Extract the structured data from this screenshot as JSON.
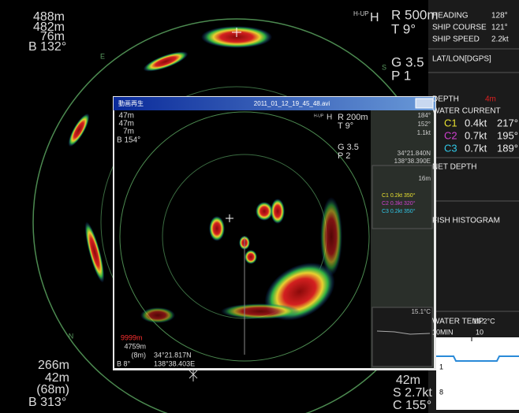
{
  "scope": {
    "top_left": [
      "488m",
      "482m",
      "76m",
      "B 132°"
    ],
    "mode": "H-UP",
    "heading_mark": "H",
    "range": "R 500m",
    "tilt": "T 9°",
    "gain": "G 3.5",
    "preset": "P 1",
    "bearings": [
      "E",
      "S",
      "N"
    ],
    "bottom_left": [
      "266m",
      "42m",
      "(68m)",
      "B 313°"
    ],
    "bottom_right": [
      "42m",
      "S 2.7kt",
      "C 155°"
    ]
  },
  "side_panel": {
    "heading": {
      "label": "HEADING",
      "value": "128°"
    },
    "ship_course": {
      "label": "SHIP COURSE",
      "value": "121°"
    },
    "ship_speed": {
      "label": "SHIP SPEED",
      "value": "2.2kt"
    },
    "position": "LAT/LON[DGPS]",
    "depth": {
      "label": "DEPTH",
      "value": "4m"
    },
    "water_current": {
      "label": "WATER CURRENT",
      "layers": [
        {
          "name": "C1",
          "speed": "0.4kt",
          "direction": "217°"
        },
        {
          "name": "C2",
          "speed": "0.7kt",
          "direction": "195°"
        },
        {
          "name": "C3",
          "speed": "0.7kt",
          "direction": "189°"
        }
      ]
    },
    "net_depth": "NET DEPTH",
    "fish_histogram": "FISH HISTOGRAM",
    "water_temp": {
      "label": "WATER TEMP",
      "value": "16.2°C",
      "span": "10MIN",
      "span_tick": "10",
      "axis": [
        "1",
        "8"
      ]
    }
  },
  "playback_window": {
    "title": "動画再生",
    "file": "2011_01_12_19_45_48.avi",
    "top_left": [
      "47m",
      "47m",
      "7m",
      "B 154°"
    ],
    "mode": "H-UP",
    "heading_mark": "H",
    "range": "R 200m",
    "tilt": "T 9°",
    "gain": "G 3.5",
    "preset": "P 2",
    "info": [
      "184°",
      "152°",
      "1.1kt",
      "34°21.840N",
      "138°38.390E",
      "16m"
    ],
    "currents": [
      "C1 0.2kt 350°",
      "C2 0.3kt 320°",
      "C3 0.2kt 350°"
    ],
    "temp": "15.1°C",
    "bottom_left": [
      "9999m",
      "4759m",
      "(8m)",
      "B 8°"
    ],
    "bottom_position": [
      "34°21.817N",
      "138°38.403E"
    ]
  }
}
